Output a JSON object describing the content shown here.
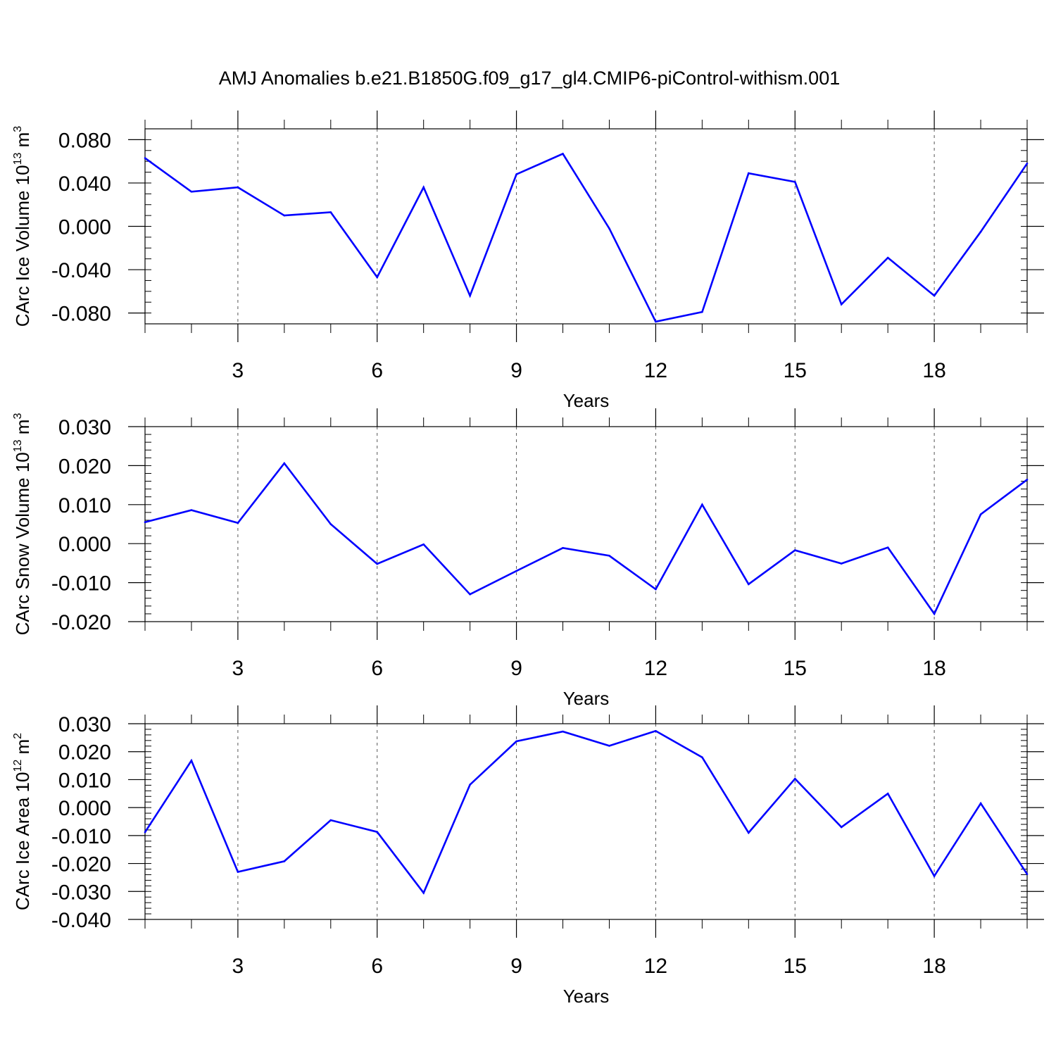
{
  "figure_title": "AMJ Anomalies b.e21.B1850G.f09_g17_gl4.CMIP6-piControl-withism.001",
  "line_color": "#0000ff",
  "chart_data": [
    {
      "type": "line",
      "name": "ice-volume",
      "ylabel_main": "CArc Ice Volume 10",
      "ylabel_exp": "13",
      "ylabel_unit": " m",
      "ylabel_unit_exp": "3",
      "xlabel": "Years",
      "x": [
        1,
        2,
        3,
        4,
        5,
        6,
        7,
        8,
        9,
        10,
        11,
        12,
        13,
        14,
        15,
        16,
        17,
        18,
        19,
        20
      ],
      "values": [
        0.063,
        0.032,
        0.036,
        0.01,
        0.013,
        -0.047,
        0.036,
        -0.064,
        0.048,
        0.067,
        -0.002,
        -0.088,
        -0.079,
        0.049,
        0.041,
        -0.072,
        -0.029,
        -0.064,
        -0.005,
        0.058
      ],
      "xlim": [
        1,
        20
      ],
      "ylim": [
        -0.09,
        0.09
      ],
      "xticks": [
        3,
        6,
        9,
        12,
        15,
        18
      ],
      "xtick_labels": [
        "3",
        "6",
        "9",
        "12",
        "15",
        "18"
      ],
      "yticks": [
        -0.08,
        -0.04,
        0.0,
        0.04,
        0.08
      ],
      "ytick_labels": [
        "-0.080",
        "-0.040",
        "0.000",
        "0.040",
        "0.080"
      ],
      "minor_y_step": 0.01
    },
    {
      "type": "line",
      "name": "snow-volume",
      "ylabel_main": "CArc Snow Volume 10",
      "ylabel_exp": "13",
      "ylabel_unit": " m",
      "ylabel_unit_exp": "3",
      "xlabel": "Years",
      "x": [
        1,
        2,
        3,
        4,
        5,
        6,
        7,
        8,
        9,
        10,
        11,
        12,
        13,
        14,
        15,
        16,
        17,
        18,
        19,
        20
      ],
      "values": [
        0.0055,
        0.0086,
        0.0053,
        0.0206,
        0.005,
        -0.0052,
        -0.0002,
        -0.013,
        -0.007,
        -0.0011,
        -0.0031,
        -0.0117,
        0.01,
        -0.0104,
        -0.0017,
        -0.0051,
        -0.001,
        -0.018,
        0.0075,
        0.0164
      ],
      "xlim": [
        1,
        20
      ],
      "ylim": [
        -0.02,
        0.03
      ],
      "xticks": [
        3,
        6,
        9,
        12,
        15,
        18
      ],
      "xtick_labels": [
        "3",
        "6",
        "9",
        "12",
        "15",
        "18"
      ],
      "yticks": [
        -0.02,
        -0.01,
        0.0,
        0.01,
        0.02,
        0.03
      ],
      "ytick_labels": [
        "-0.020",
        "-0.010",
        "0.000",
        "0.010",
        "0.020",
        "0.030"
      ],
      "minor_y_step": 0.002
    },
    {
      "type": "line",
      "name": "ice-area",
      "ylabel_main": "CArc Ice Area 10",
      "ylabel_exp": "12",
      "ylabel_unit": " m",
      "ylabel_unit_exp": "2",
      "xlabel": "Years",
      "x": [
        1,
        2,
        3,
        4,
        5,
        6,
        7,
        8,
        9,
        10,
        11,
        12,
        13,
        14,
        15,
        16,
        17,
        18,
        19,
        20
      ],
      "values": [
        -0.0088,
        0.0168,
        -0.023,
        -0.0192,
        -0.0045,
        -0.0087,
        -0.0305,
        0.0082,
        0.0237,
        0.0272,
        0.0221,
        0.0274,
        0.018,
        -0.009,
        0.0103,
        -0.007,
        0.005,
        -0.0245,
        0.0015,
        -0.0238
      ],
      "xlim": [
        1,
        20
      ],
      "ylim": [
        -0.04,
        0.03
      ],
      "xticks": [
        3,
        6,
        9,
        12,
        15,
        18
      ],
      "xtick_labels": [
        "3",
        "6",
        "9",
        "12",
        "15",
        "18"
      ],
      "yticks": [
        -0.04,
        -0.03,
        -0.02,
        -0.01,
        0.0,
        0.01,
        0.02,
        0.03
      ],
      "ytick_labels": [
        "-0.040",
        "-0.030",
        "-0.020",
        "-0.010",
        "0.000",
        "0.010",
        "0.020",
        "0.030"
      ],
      "minor_y_step": 0.002
    }
  ]
}
